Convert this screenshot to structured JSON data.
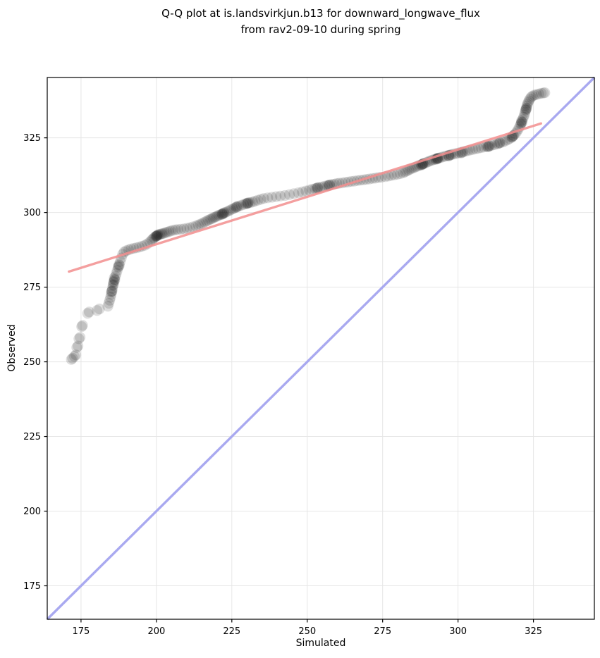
{
  "title": {
    "line1": "Q-Q plot at is.landsvirkjun.b13 for downward_longwave_flux",
    "line2": "from rav2-09-10 during spring"
  },
  "chart_data": {
    "type": "scatter",
    "title": "Q-Q plot at is.landsvirkjun.b13 for downward_longwave_flux from rav2-09-10 during spring",
    "xlabel": "Simulated",
    "ylabel": "Observed",
    "xlim": [
      163.8,
      345.2
    ],
    "ylim": [
      163.8,
      345.2
    ],
    "xticks": [
      175,
      200,
      225,
      250,
      275,
      300,
      325
    ],
    "yticks": [
      175,
      200,
      225,
      250,
      275,
      300,
      325
    ],
    "grid": true,
    "grid_color": "#e6e6e6",
    "spine_color": "#000000",
    "tick_label_color": "#000000",
    "identity_line": {
      "name": "identity",
      "color": "#a9a9f0",
      "width": 3.4,
      "from": [
        163.8,
        163.8
      ],
      "to": [
        345.2,
        345.2
      ]
    },
    "fit_line": {
      "name": "linear-fit",
      "color": "#f28e8e",
      "width": 3.4,
      "opacity": 0.85,
      "from": [
        171.0,
        280.2
      ],
      "to": [
        327.5,
        329.8
      ]
    },
    "scatter_style": {
      "color": "#000000",
      "opacity": 0.13,
      "radius_px": 7.6
    },
    "points": [
      [
        171.8,
        250.8
      ],
      [
        172.2,
        251.2
      ],
      [
        172.8,
        251.8
      ],
      [
        173.3,
        252.3
      ],
      [
        173.6,
        254.8
      ],
      [
        174.0,
        255.3
      ],
      [
        174.3,
        257.7
      ],
      [
        174.7,
        258.2
      ],
      [
        175.2,
        261.8
      ],
      [
        175.5,
        262.2
      ],
      [
        177.2,
        266.2
      ],
      [
        177.7,
        266.7
      ],
      [
        180.3,
        267.2
      ],
      [
        181.1,
        267.7
      ],
      [
        183.9,
        268.6
      ],
      [
        184.2,
        269.6
      ],
      [
        184.5,
        270.6
      ],
      [
        184.8,
        271.6
      ],
      [
        185.0,
        272.6
      ],
      [
        185.2,
        273.6
      ],
      [
        185.4,
        274.6
      ],
      [
        185.6,
        275.6
      ],
      [
        185.8,
        276.6
      ],
      [
        186.1,
        277.6
      ],
      [
        186.4,
        278.6
      ],
      [
        186.7,
        279.6
      ],
      [
        187.0,
        280.6
      ],
      [
        187.3,
        281.6
      ],
      [
        187.6,
        282.6
      ],
      [
        188.0,
        283.6
      ],
      [
        188.4,
        284.8
      ],
      [
        188.8,
        286.0
      ],
      [
        189.3,
        286.8
      ],
      [
        190.0,
        287.2
      ],
      [
        190.8,
        287.5
      ],
      [
        191.6,
        287.8
      ],
      [
        192.5,
        288.0
      ],
      [
        193.4,
        288.2
      ],
      [
        194.3,
        288.4
      ],
      [
        195.2,
        288.7
      ],
      [
        196.1,
        289.0
      ],
      [
        197.0,
        289.5
      ],
      [
        197.8,
        290.1
      ],
      [
        198.4,
        290.7
      ],
      [
        198.8,
        291.1
      ],
      [
        199.2,
        291.5
      ],
      [
        199.6,
        291.9
      ],
      [
        200.0,
        292.1
      ],
      [
        200.3,
        292.3
      ],
      [
        200.7,
        292.5
      ],
      [
        201.1,
        292.7
      ],
      [
        201.5,
        292.8
      ],
      [
        201.9,
        292.9
      ],
      [
        202.4,
        293.0
      ],
      [
        202.9,
        293.2
      ],
      [
        203.5,
        293.4
      ],
      [
        204.1,
        293.6
      ],
      [
        204.7,
        293.8
      ],
      [
        205.5,
        294.0
      ],
      [
        206.3,
        294.2
      ],
      [
        207.1,
        294.3
      ],
      [
        208.1,
        294.4
      ],
      [
        209.1,
        294.5
      ],
      [
        210.1,
        294.7
      ],
      [
        211.1,
        294.9
      ],
      [
        212.1,
        295.2
      ],
      [
        213.1,
        295.5
      ],
      [
        213.9,
        295.8
      ],
      [
        214.6,
        296.1
      ],
      [
        215.3,
        296.4
      ],
      [
        216.0,
        296.8
      ],
      [
        216.6,
        297.1
      ],
      [
        217.2,
        297.4
      ],
      [
        217.8,
        297.7
      ],
      [
        218.3,
        297.9
      ],
      [
        218.8,
        298.2
      ],
      [
        219.3,
        298.4
      ],
      [
        219.8,
        298.6
      ],
      [
        220.3,
        298.9
      ],
      [
        220.8,
        299.1
      ],
      [
        221.3,
        299.3
      ],
      [
        221.8,
        299.5
      ],
      [
        222.3,
        299.7
      ],
      [
        222.9,
        300.0
      ],
      [
        223.5,
        300.3
      ],
      [
        224.1,
        300.6
      ],
      [
        224.7,
        300.9
      ],
      [
        225.3,
        301.2
      ],
      [
        225.9,
        301.5
      ],
      [
        226.6,
        301.8
      ],
      [
        227.3,
        302.1
      ],
      [
        228.1,
        302.4
      ],
      [
        228.9,
        302.7
      ],
      [
        229.6,
        302.9
      ],
      [
        230.3,
        303.1
      ],
      [
        231.1,
        303.3
      ],
      [
        231.9,
        303.5
      ],
      [
        232.7,
        303.8
      ],
      [
        233.6,
        304.1
      ],
      [
        234.6,
        304.4
      ],
      [
        235.6,
        304.7
      ],
      [
        236.9,
        304.9
      ],
      [
        238.3,
        305.1
      ],
      [
        239.7,
        305.3
      ],
      [
        241.1,
        305.5
      ],
      [
        242.6,
        305.7
      ],
      [
        244.1,
        306.0
      ],
      [
        245.6,
        306.3
      ],
      [
        247.1,
        306.6
      ],
      [
        248.4,
        306.9
      ],
      [
        249.6,
        307.2
      ],
      [
        250.7,
        307.5
      ],
      [
        251.7,
        307.8
      ],
      [
        252.6,
        308.0
      ],
      [
        253.4,
        308.2
      ],
      [
        254.2,
        308.4
      ],
      [
        255.0,
        308.6
      ],
      [
        255.8,
        308.8
      ],
      [
        256.6,
        309.0
      ],
      [
        257.4,
        309.2
      ],
      [
        258.2,
        309.4
      ],
      [
        259.0,
        309.5
      ],
      [
        259.8,
        309.7
      ],
      [
        260.6,
        309.8
      ],
      [
        261.6,
        309.9
      ],
      [
        262.6,
        310.1
      ],
      [
        263.6,
        310.2
      ],
      [
        264.6,
        310.4
      ],
      [
        265.6,
        310.5
      ],
      [
        266.6,
        310.7
      ],
      [
        267.6,
        310.8
      ],
      [
        268.6,
        310.9
      ],
      [
        269.6,
        311.1
      ],
      [
        270.6,
        311.2
      ],
      [
        271.6,
        311.4
      ],
      [
        272.6,
        311.5
      ],
      [
        273.6,
        311.7
      ],
      [
        274.6,
        311.8
      ],
      [
        275.9,
        312.0
      ],
      [
        276.9,
        312.2
      ],
      [
        277.9,
        312.4
      ],
      [
        278.9,
        312.6
      ],
      [
        279.9,
        312.8
      ],
      [
        280.9,
        313.0
      ],
      [
        281.8,
        313.3
      ],
      [
        282.4,
        313.6
      ],
      [
        283.0,
        313.9
      ],
      [
        283.6,
        314.2
      ],
      [
        284.2,
        314.5
      ],
      [
        284.8,
        314.8
      ],
      [
        285.4,
        315.0
      ],
      [
        286.0,
        315.3
      ],
      [
        286.6,
        315.5
      ],
      [
        287.2,
        315.8
      ],
      [
        287.8,
        316.0
      ],
      [
        288.4,
        316.3
      ],
      [
        289.0,
        316.5
      ],
      [
        289.6,
        316.8
      ],
      [
        290.2,
        317.0
      ],
      [
        290.8,
        317.3
      ],
      [
        291.4,
        317.5
      ],
      [
        292.0,
        317.7
      ],
      [
        292.6,
        317.9
      ],
      [
        293.2,
        318.1
      ],
      [
        293.9,
        318.3
      ],
      [
        294.6,
        318.5
      ],
      [
        295.3,
        318.7
      ],
      [
        296.0,
        318.9
      ],
      [
        296.8,
        319.1
      ],
      [
        297.6,
        319.3
      ],
      [
        298.4,
        319.5
      ],
      [
        299.2,
        319.7
      ],
      [
        300.0,
        319.9
      ],
      [
        300.8,
        320.1
      ],
      [
        301.6,
        320.3
      ],
      [
        302.4,
        320.5
      ],
      [
        303.2,
        320.7
      ],
      [
        304.0,
        320.9
      ],
      [
        304.9,
        321.1
      ],
      [
        305.8,
        321.3
      ],
      [
        306.7,
        321.5
      ],
      [
        307.6,
        321.7
      ],
      [
        308.5,
        321.9
      ],
      [
        309.4,
        322.1
      ],
      [
        310.3,
        322.3
      ],
      [
        311.2,
        322.5
      ],
      [
        312.1,
        322.7
      ],
      [
        313.0,
        323.0
      ],
      [
        313.9,
        323.3
      ],
      [
        314.8,
        323.6
      ],
      [
        315.6,
        323.9
      ],
      [
        316.4,
        324.3
      ],
      [
        317.1,
        324.7
      ],
      [
        317.8,
        325.2
      ],
      [
        318.4,
        325.8
      ],
      [
        319.0,
        326.4
      ],
      [
        319.5,
        327.1
      ],
      [
        320.0,
        327.9
      ],
      [
        320.4,
        328.7
      ],
      [
        320.8,
        329.5
      ],
      [
        321.1,
        330.3
      ],
      [
        321.4,
        331.1
      ],
      [
        321.7,
        331.9
      ],
      [
        322.0,
        332.7
      ],
      [
        322.2,
        333.5
      ],
      [
        322.4,
        334.2
      ],
      [
        322.6,
        334.9
      ],
      [
        322.8,
        335.6
      ],
      [
        323.0,
        336.2
      ],
      [
        323.2,
        336.8
      ],
      [
        323.5,
        337.4
      ],
      [
        323.8,
        338.0
      ],
      [
        324.2,
        338.6
      ],
      [
        324.7,
        339.0
      ],
      [
        325.3,
        339.3
      ],
      [
        326.0,
        339.5
      ],
      [
        326.8,
        339.7
      ],
      [
        327.6,
        339.9
      ],
      [
        328.3,
        340.0
      ],
      [
        328.8,
        340.1
      ],
      [
        185.9,
        276.9
      ],
      [
        186.2,
        277.4
      ],
      [
        185.7,
        275.9
      ],
      [
        186.0,
        278.1
      ],
      [
        185.1,
        273.4
      ],
      [
        185.3,
        273.8
      ],
      [
        187.4,
        281.9
      ],
      [
        187.7,
        282.3
      ],
      [
        200.1,
        292.2
      ],
      [
        200.4,
        292.5
      ],
      [
        199.9,
        292.0
      ],
      [
        222.0,
        299.6
      ],
      [
        222.4,
        299.9
      ],
      [
        221.8,
        299.4
      ],
      [
        226.4,
        301.8
      ],
      [
        226.8,
        302.0
      ],
      [
        230.2,
        303.1
      ],
      [
        230.5,
        303.3
      ],
      [
        229.9,
        303.0
      ],
      [
        253.1,
        308.1
      ],
      [
        253.5,
        308.3
      ],
      [
        257.0,
        309.0
      ],
      [
        257.4,
        309.2
      ],
      [
        288.1,
        316.1
      ],
      [
        288.5,
        316.4
      ],
      [
        287.9,
        315.9
      ],
      [
        288.3,
        316.2
      ],
      [
        293.0,
        318.0
      ],
      [
        293.4,
        318.2
      ],
      [
        292.8,
        317.8
      ],
      [
        293.2,
        318.1
      ],
      [
        297.0,
        319.1
      ],
      [
        297.5,
        319.3
      ],
      [
        296.9,
        318.9
      ],
      [
        301.0,
        319.9
      ],
      [
        301.4,
        320.1
      ],
      [
        310.0,
        322.1
      ],
      [
        310.5,
        322.3
      ],
      [
        309.9,
        322.0
      ],
      [
        313.4,
        323.1
      ],
      [
        313.8,
        323.3
      ],
      [
        318.0,
        325.4
      ],
      [
        318.3,
        325.7
      ],
      [
        317.9,
        325.2
      ],
      [
        320.9,
        329.8
      ],
      [
        321.2,
        330.2
      ],
      [
        321.0,
        330.6
      ],
      [
        322.5,
        334.4
      ],
      [
        322.7,
        334.8
      ]
    ]
  }
}
